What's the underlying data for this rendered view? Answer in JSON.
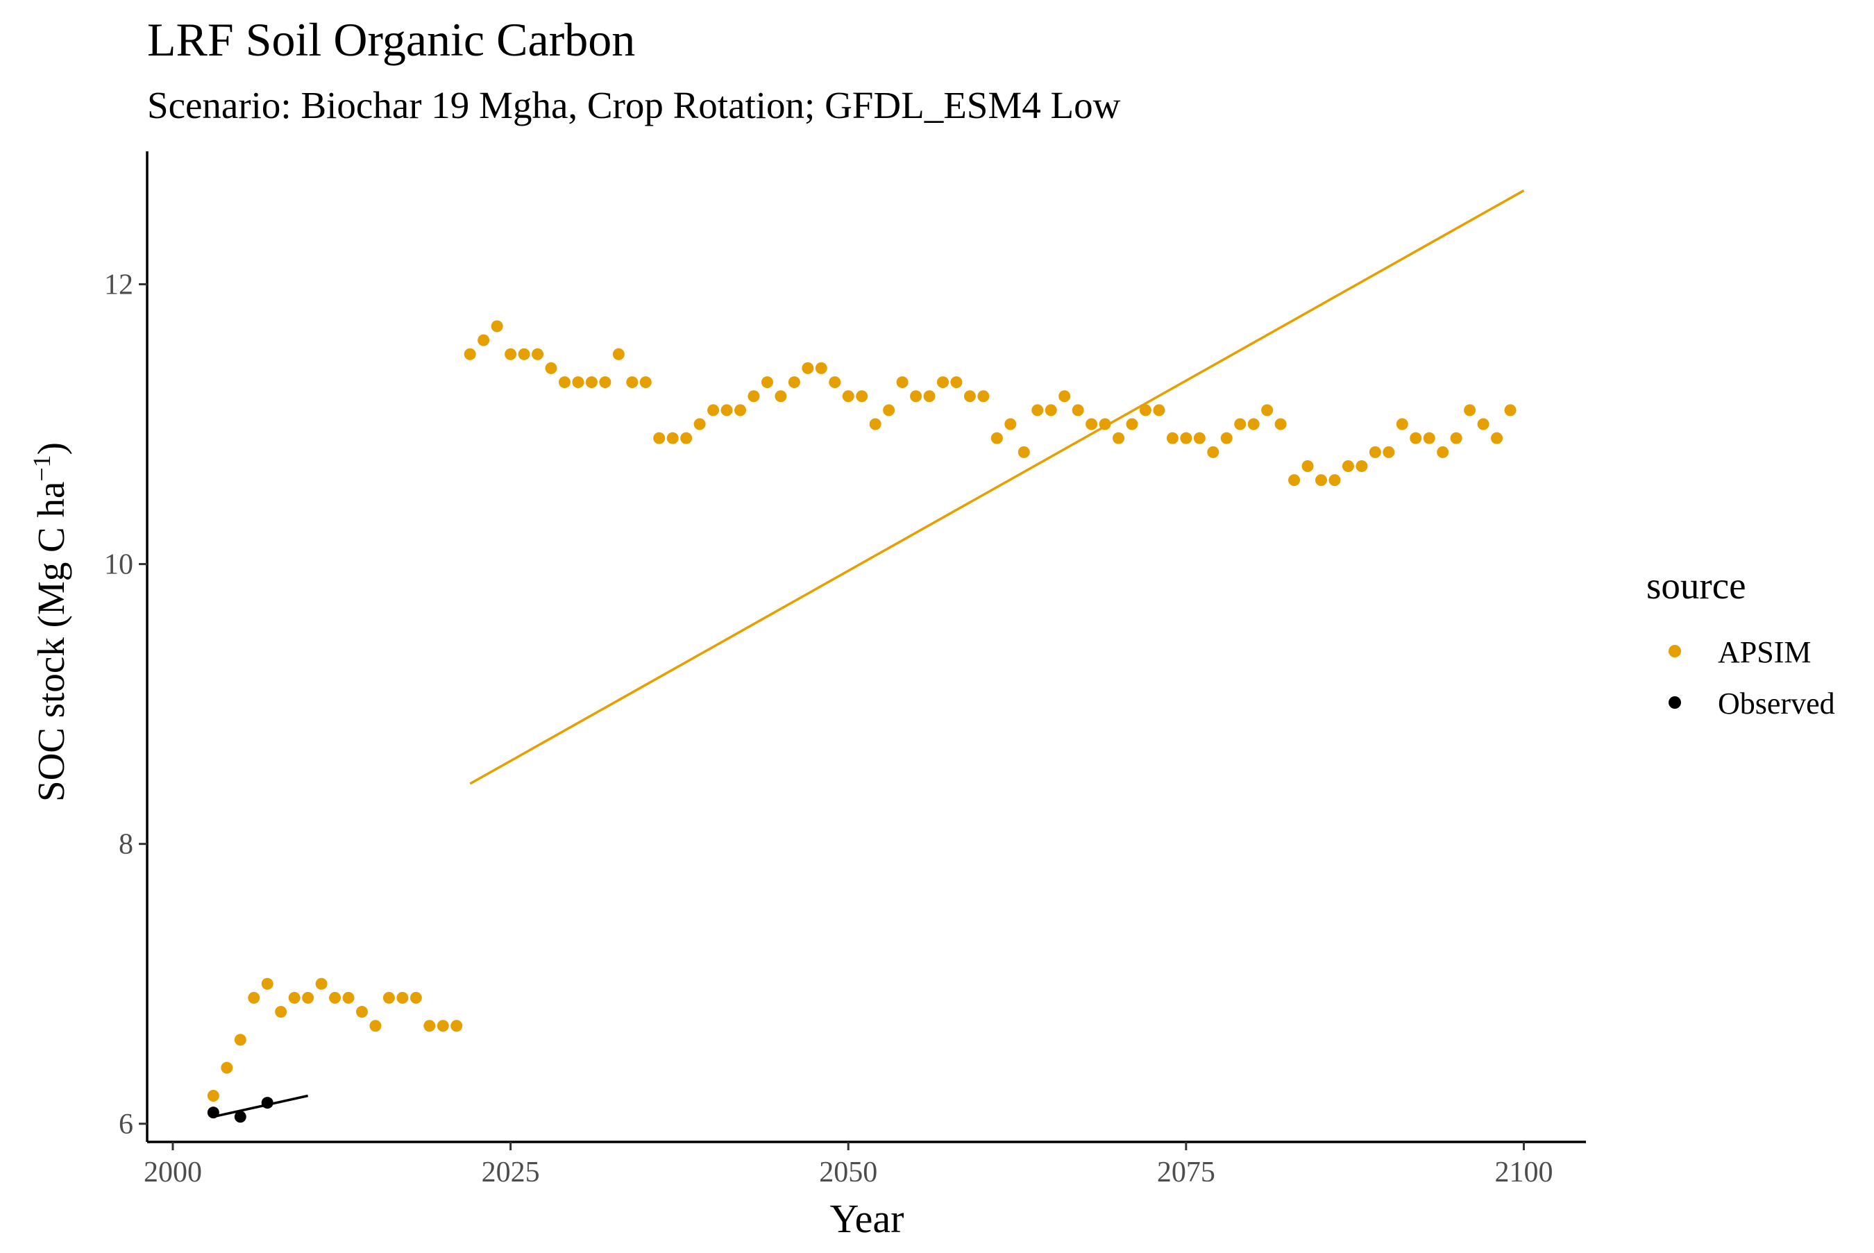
{
  "chart_data": {
    "type": "scatter",
    "title": "LRF Soil Organic Carbon",
    "subtitle": "Scenario: Biochar 19 Mgha, Crop Rotation; GFDL_ESM4 Low",
    "xlabel": "Year",
    "ylabel": "SOC stock (Mg C ha",
    "ylabel_superscript": "−1",
    "ylabel_close": ")",
    "xlim": [
      1998.1,
      2104.6
    ],
    "ylim": [
      5.87,
      12.95
    ],
    "x_ticks": [
      2000,
      2025,
      2050,
      2075,
      2100
    ],
    "y_ticks": [
      6,
      8,
      10,
      12
    ],
    "grid": false,
    "legend": {
      "title": "source",
      "placement": "right",
      "entries": [
        {
          "label": "APSIM",
          "color": "#E69F00"
        },
        {
          "label": "Observed",
          "color": "#000000"
        }
      ]
    },
    "series": [
      {
        "name": "APSIM",
        "color": "#E69F00",
        "points": [
          [
            2003,
            6.2
          ],
          [
            2004,
            6.4
          ],
          [
            2005,
            6.6
          ],
          [
            2006,
            6.9
          ],
          [
            2007,
            7.0
          ],
          [
            2008,
            6.8
          ],
          [
            2009,
            6.9
          ],
          [
            2010,
            6.9
          ],
          [
            2011,
            7.0
          ],
          [
            2012,
            6.9
          ],
          [
            2013,
            6.9
          ],
          [
            2014,
            6.8
          ],
          [
            2015,
            6.7
          ],
          [
            2016,
            6.9
          ],
          [
            2017,
            6.9
          ],
          [
            2018,
            6.9
          ],
          [
            2019,
            6.7
          ],
          [
            2020,
            6.7
          ],
          [
            2021,
            6.7
          ],
          [
            2022,
            11.5
          ],
          [
            2023,
            11.6
          ],
          [
            2024,
            11.7
          ],
          [
            2025,
            11.5
          ],
          [
            2026,
            11.5
          ],
          [
            2027,
            11.5
          ],
          [
            2028,
            11.4
          ],
          [
            2029,
            11.3
          ],
          [
            2030,
            11.3
          ],
          [
            2031,
            11.3
          ],
          [
            2032,
            11.3
          ],
          [
            2033,
            11.5
          ],
          [
            2034,
            11.3
          ],
          [
            2035,
            11.3
          ],
          [
            2036,
            10.9
          ],
          [
            2037,
            10.9
          ],
          [
            2038,
            10.9
          ],
          [
            2039,
            11.0
          ],
          [
            2040,
            11.1
          ],
          [
            2041,
            11.1
          ],
          [
            2042,
            11.1
          ],
          [
            2043,
            11.2
          ],
          [
            2044,
            11.3
          ],
          [
            2045,
            11.2
          ],
          [
            2046,
            11.3
          ],
          [
            2047,
            11.4
          ],
          [
            2048,
            11.4
          ],
          [
            2049,
            11.3
          ],
          [
            2050,
            11.2
          ],
          [
            2051,
            11.2
          ],
          [
            2052,
            11.0
          ],
          [
            2053,
            11.1
          ],
          [
            2054,
            11.3
          ],
          [
            2055,
            11.2
          ],
          [
            2056,
            11.2
          ],
          [
            2057,
            11.3
          ],
          [
            2058,
            11.3
          ],
          [
            2059,
            11.2
          ],
          [
            2060,
            11.2
          ],
          [
            2061,
            10.9
          ],
          [
            2062,
            11.0
          ],
          [
            2063,
            10.8
          ],
          [
            2064,
            11.1
          ],
          [
            2065,
            11.1
          ],
          [
            2066,
            11.2
          ],
          [
            2067,
            11.1
          ],
          [
            2068,
            11.0
          ],
          [
            2069,
            11.0
          ],
          [
            2070,
            10.9
          ],
          [
            2071,
            11.0
          ],
          [
            2072,
            11.1
          ],
          [
            2073,
            11.1
          ],
          [
            2074,
            10.9
          ],
          [
            2075,
            10.9
          ],
          [
            2076,
            10.9
          ],
          [
            2077,
            10.8
          ],
          [
            2078,
            10.9
          ],
          [
            2079,
            11.0
          ],
          [
            2080,
            11.0
          ],
          [
            2081,
            11.1
          ],
          [
            2082,
            11.0
          ],
          [
            2083,
            10.6
          ],
          [
            2084,
            10.7
          ],
          [
            2085,
            10.6
          ],
          [
            2086,
            10.6
          ],
          [
            2087,
            10.7
          ],
          [
            2088,
            10.7
          ],
          [
            2089,
            10.8
          ],
          [
            2090,
            10.8
          ],
          [
            2091,
            11.0
          ],
          [
            2092,
            10.9
          ],
          [
            2093,
            10.9
          ],
          [
            2094,
            10.8
          ],
          [
            2095,
            10.9
          ],
          [
            2096,
            11.1
          ],
          [
            2097,
            11.0
          ],
          [
            2098,
            10.9
          ],
          [
            2099,
            11.1
          ]
        ],
        "trend": [
          [
            2022,
            8.43
          ],
          [
            2100,
            12.67
          ]
        ]
      },
      {
        "name": "Observed",
        "color": "#000000",
        "points": [
          [
            2003,
            6.08
          ],
          [
            2005,
            6.05
          ],
          [
            2007,
            6.15
          ]
        ],
        "trend": [
          [
            2003,
            6.05
          ],
          [
            2010,
            6.2
          ]
        ]
      }
    ]
  }
}
